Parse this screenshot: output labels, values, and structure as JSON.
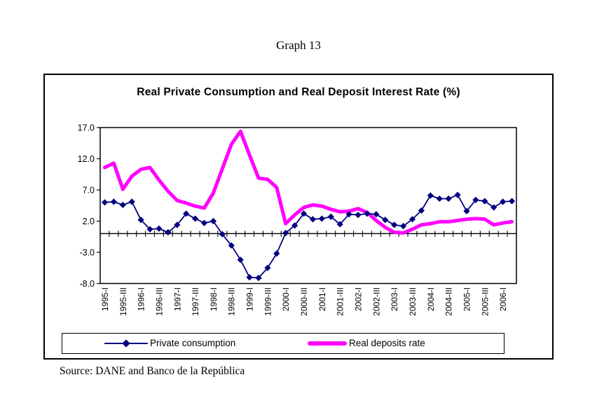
{
  "page": {
    "graph_label": "Graph 13",
    "source": "Source: DANE and Banco de la República"
  },
  "chart": {
    "title": "Real Private Consumption and Real Deposit Interest Rate (%)"
  },
  "colors": {
    "consumption": "#000080",
    "deposits": "#FF00FF",
    "axis": "#000000"
  },
  "chart_data": {
    "type": "line",
    "title": "Real Private Consumption and Real Deposit Interest Rate (%)",
    "xlabel": "",
    "ylabel": "",
    "ylim": [
      -8.0,
      17.0
    ],
    "yticks": [
      17.0,
      12.0,
      7.0,
      2.0,
      -3.0,
      -8.0
    ],
    "x_axis_cross": 0,
    "grid": false,
    "legend_position": "bottom",
    "categories": [
      "1995-I",
      "1995-II",
      "1995-III",
      "1995-IV",
      "1996-I",
      "1996-II",
      "1996-III",
      "1996-IV",
      "1997-I",
      "1997-II",
      "1997-III",
      "1997-IV",
      "1998-I",
      "1998-II",
      "1998-III",
      "1998-IV",
      "1999-I",
      "1999-II",
      "1999-III",
      "1999-IV",
      "2000-I",
      "2000-II",
      "2000-III",
      "2000-IV",
      "2001-I",
      "2001-II",
      "2001-III",
      "2001-IV",
      "2002-I",
      "2002-II",
      "2002-III",
      "2002-IV",
      "2003-I",
      "2003-II",
      "2003-III",
      "2003-IV",
      "2004-I",
      "2004-II",
      "2004-III",
      "2004-IV",
      "2005-I",
      "2005-II",
      "2005-III",
      "2005-IV",
      "2006-I",
      "2006-II"
    ],
    "x_tick_labels": [
      "1995-I",
      "1995-III",
      "1996-I",
      "1996-III",
      "1997-I",
      "1997-III",
      "1998-I",
      "1998-III",
      "1999-I",
      "1999-III",
      "2000-I",
      "2000-III",
      "2001-I",
      "2001-III",
      "2002-I",
      "2002-III",
      "2003-I",
      "2003-III",
      "2004-I",
      "2004-III",
      "2005-I",
      "2005-III",
      "2006-I"
    ],
    "x_label_step": 2,
    "series": [
      {
        "name": "Real deposits rate",
        "color": "#FF00FF",
        "marker": "none",
        "stroke_width": 5,
        "values": [
          10.6,
          11.3,
          7.1,
          9.2,
          10.3,
          10.6,
          8.6,
          6.8,
          5.3,
          4.9,
          4.4,
          4.1,
          6.5,
          10.4,
          14.3,
          16.4,
          12.6,
          8.9,
          8.7,
          7.4,
          1.6,
          3.0,
          4.2,
          4.6,
          4.4,
          3.9,
          3.5,
          3.6,
          4.0,
          3.4,
          2.1,
          1.0,
          0.2,
          0.1,
          0.7,
          1.4,
          1.6,
          1.9,
          1.9,
          2.1,
          2.3,
          2.4,
          2.3,
          1.4,
          1.7,
          1.9
        ]
      },
      {
        "name": "Private consumption",
        "color": "#000080",
        "marker": "diamond",
        "stroke_width": 1.8,
        "values": [
          5.0,
          5.1,
          4.6,
          5.1,
          2.2,
          0.7,
          0.8,
          0.2,
          1.4,
          3.2,
          2.4,
          1.7,
          2.0,
          -0.1,
          -1.9,
          -4.2,
          -7.0,
          -7.1,
          -5.5,
          -3.2,
          0.1,
          1.3,
          3.2,
          2.3,
          2.4,
          2.7,
          1.5,
          3.1,
          3.0,
          3.2,
          3.1,
          2.2,
          1.4,
          1.2,
          2.3,
          3.7,
          6.1,
          5.6,
          5.6,
          6.2,
          3.6,
          5.4,
          5.2,
          4.2,
          5.1,
          5.2
        ]
      }
    ]
  },
  "legend": {
    "consumption_label": "Private consumption",
    "deposits_label": "Real deposits rate"
  }
}
